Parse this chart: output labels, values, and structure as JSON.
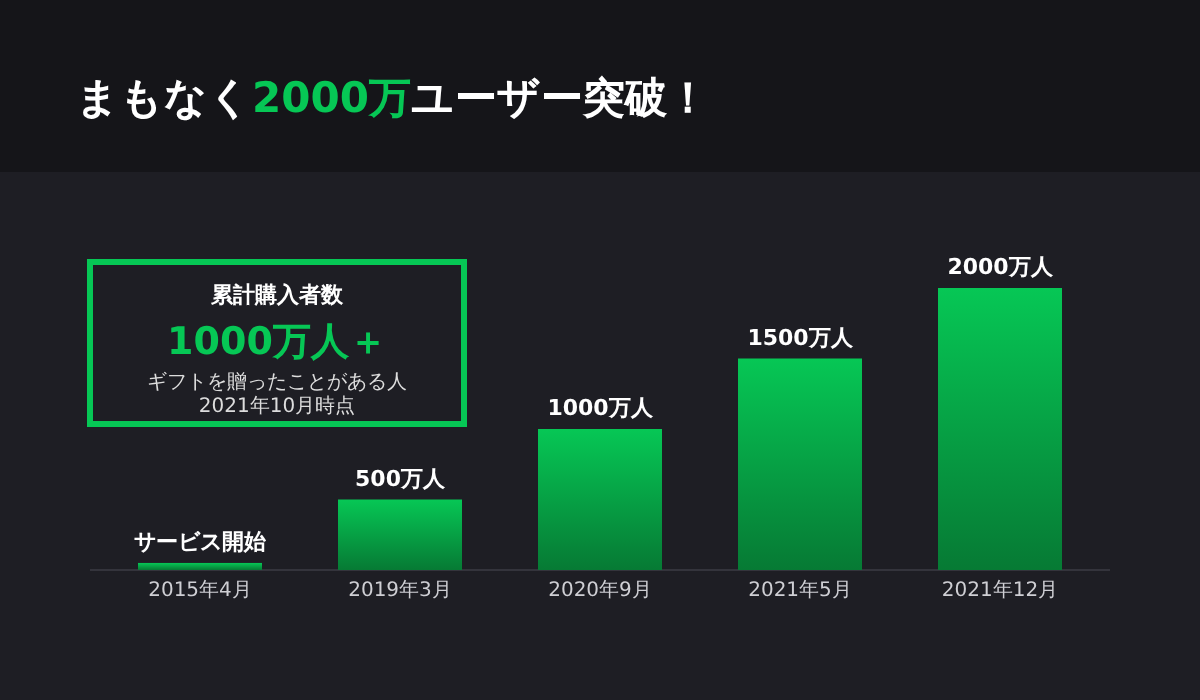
{
  "chart_data": {
    "type": "bar",
    "title": "まもなく2000万ユーザー突破！",
    "categories": [
      "2015年4月",
      "2019年3月",
      "2020年9月",
      "2021年5月",
      "2021年12月"
    ],
    "values": [
      50,
      500,
      1000,
      1500,
      2000
    ],
    "value_labels": [
      "サービス開始",
      "500万人",
      "1000万人",
      "1500万人",
      "2000万人"
    ],
    "color": "#06c755",
    "annotations": [
      "累計購入者数",
      "1000万人＋",
      "ギフトを贈ったことがある人",
      "2021年10月時点"
    ],
    "ylim": [
      0,
      2000
    ]
  }
}
